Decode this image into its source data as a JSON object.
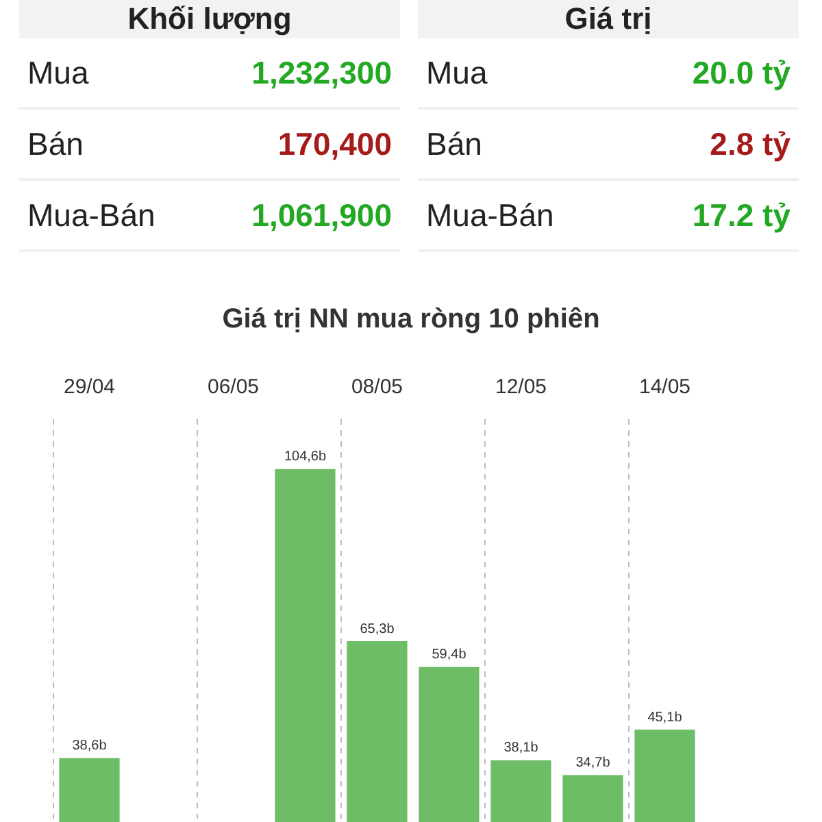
{
  "chart_data": [
    {
      "type": "other",
      "title": "Khối lượng",
      "categories": [
        "Mua",
        "Bán",
        "Mua-Bán"
      ],
      "value_labels": [
        "1,232,300",
        "170,400",
        "1,061,900"
      ],
      "colors": [
        "#22a822",
        "#a51b1b",
        "#22a822"
      ]
    },
    {
      "type": "other",
      "title": "Giá trị",
      "categories": [
        "Mua",
        "Bán",
        "Mua-Bán"
      ],
      "value_labels": [
        "20.0 tỷ",
        "2.8 tỷ",
        "17.2 tỷ"
      ],
      "colors": [
        "#22a822",
        "#a51b1b",
        "#22a822"
      ]
    },
    {
      "type": "bar",
      "title": "Giá trị NN mua ròng 10 phiên",
      "categories": [
        "29/04",
        null,
        "06/05",
        null,
        "08/05",
        null,
        "12/05",
        null,
        "14/05",
        null
      ],
      "values": [
        38.6,
        null,
        null,
        104.6,
        65.3,
        59.4,
        38.1,
        34.7,
        45.1,
        null
      ],
      "value_labels": [
        "38,6b",
        null,
        null,
        "104,6b",
        "65,3b",
        "59,4b",
        "38,1b",
        "34,7b",
        "45,1b",
        null
      ],
      "color": "#6dbd66",
      "ylim": [
        24,
        116
      ],
      "grid": "x",
      "legend": false
    }
  ]
}
